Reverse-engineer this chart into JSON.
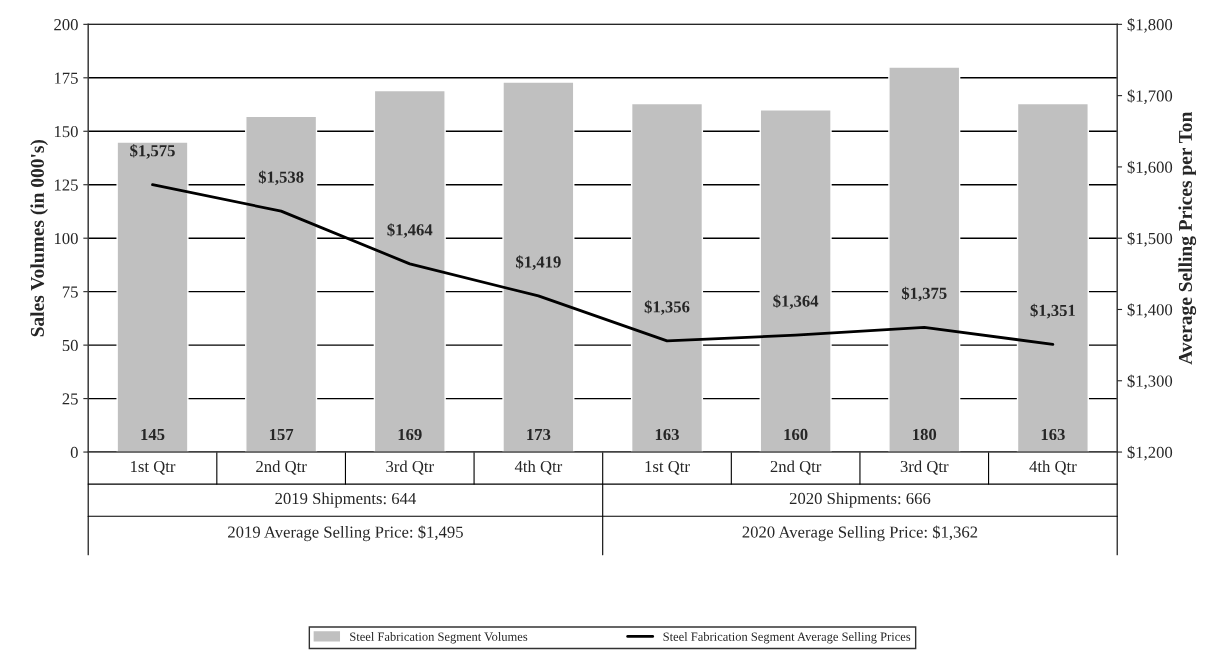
{
  "chart_data": {
    "type": "bar",
    "categories": [
      "1st Qtr",
      "2nd Qtr",
      "3rd Qtr",
      "4th Qtr",
      "1st Qtr",
      "2nd Qtr",
      "3rd Qtr",
      "4th Qtr"
    ],
    "series": [
      {
        "name": "Steel Fabrication Segment Volumes",
        "color": "#c0c0c0",
        "values": [
          145,
          157,
          169,
          173,
          163,
          160,
          180,
          163
        ],
        "value_labels": [
          "145",
          "157",
          "169",
          "173",
          "163",
          "160",
          "180",
          "163"
        ]
      },
      {
        "name": "Steel Fabrication Segment Average Selling Prices",
        "type": "line",
        "axis": "y2",
        "color": "#000000",
        "values": [
          1575,
          1538,
          1464,
          1419,
          1356,
          1364,
          1375,
          1351
        ],
        "value_labels": [
          "$1,575",
          "$1,538",
          "$1,464",
          "$1,419",
          "$1,356",
          "$1,364",
          "$1,375",
          "$1,351"
        ]
      }
    ],
    "ylabel": "Sales Volumes (in 000's)",
    "y2label": "Average Selling Prices per Ton",
    "ylim": [
      0,
      200
    ],
    "yticks": [
      0,
      25,
      50,
      75,
      100,
      125,
      150,
      175,
      200
    ],
    "y2lim": [
      1200,
      1800
    ],
    "y2ticks": [
      {
        "value": 1200,
        "label": "$1,200"
      },
      {
        "value": 1300,
        "label": "$1,300"
      },
      {
        "value": 1400,
        "label": "$1,400"
      },
      {
        "value": 1500,
        "label": "$1,500"
      },
      {
        "value": 1600,
        "label": "$1,600"
      },
      {
        "value": 1700,
        "label": "$1,700"
      },
      {
        "value": 1800,
        "label": "$1,800"
      }
    ],
    "annotations": [
      "2019 Shipments: 644",
      "2020 Shipments: 666",
      "2019 Average Selling Price: $1,495",
      "2020 Average Selling Price: $1,362"
    ],
    "grid": "y",
    "legend": "bottom",
    "marker": "none",
    "line_style": "solid"
  }
}
